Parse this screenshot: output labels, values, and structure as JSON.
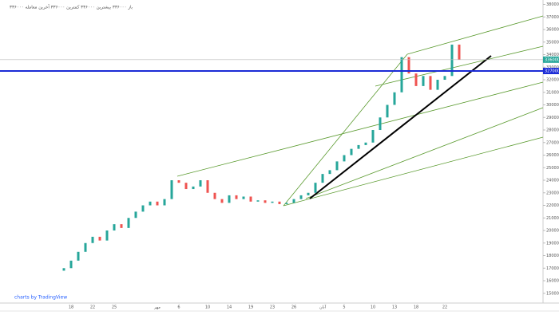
{
  "chart_data": {
    "type": "candlestick",
    "legend_text": "باز ۳۳۶۰۰۰ بیشترین ۳۳۶۰۰۰ کمترین ۳۳۶۰۰۰ آخرین معامله ۳۳۶۰۰۰",
    "watermark": "charts by TradingView",
    "categories": [
      null,
      "18",
      null,
      null,
      "22",
      null,
      null,
      "25",
      null,
      null,
      null,
      null,
      null,
      "مهر",
      null,
      null,
      "6",
      null,
      null,
      null,
      "10",
      null,
      null,
      "14",
      null,
      null,
      "19",
      null,
      null,
      "23",
      null,
      null,
      "26",
      null,
      null,
      null,
      "آبان",
      null,
      null,
      "5",
      null,
      null,
      null,
      "10",
      null,
      null,
      "13",
      null,
      null,
      "18",
      null,
      null,
      null,
      "22",
      null,
      null
    ],
    "open": [
      1680000,
      1700000,
      1760000,
      1830000,
      1900000,
      1950000,
      1920000,
      2000000,
      2050000,
      2020000,
      2100000,
      2150000,
      2200000,
      2230000,
      2200000,
      2250000,
      2400000,
      2380000,
      2330000,
      2350000,
      2400000,
      2300000,
      2250000,
      2220000,
      2280000,
      2250000,
      2270000,
      2230000,
      2240000,
      2220000,
      2230000,
      2210000,
      2220000,
      2250000,
      2280000,
      2300000,
      2380000,
      2450000,
      2480000,
      2550000,
      2600000,
      2650000,
      2680000,
      2700000,
      2800000,
      2900000,
      3000000,
      3100000,
      3380000,
      3250000,
      3150000,
      3230000,
      3120000,
      3200000,
      3230000,
      3480000
    ],
    "close": [
      1700000,
      1760000,
      1830000,
      1900000,
      1950000,
      1920000,
      2000000,
      2050000,
      2020000,
      2100000,
      2150000,
      2200000,
      2230000,
      2200000,
      2250000,
      2400000,
      2380000,
      2330000,
      2350000,
      2400000,
      2300000,
      2250000,
      2220000,
      2280000,
      2250000,
      2270000,
      2230000,
      2240000,
      2220000,
      2230000,
      2210000,
      2220000,
      2250000,
      2280000,
      2300000,
      2380000,
      2450000,
      2480000,
      2550000,
      2600000,
      2650000,
      2680000,
      2700000,
      2800000,
      2900000,
      3000000,
      3100000,
      3380000,
      3250000,
      3150000,
      3230000,
      3120000,
      3200000,
      3230000,
      3480000,
      3360000
    ],
    "up_color": "#26a69a",
    "down_color": "#ef5350",
    "level": 3270000,
    "level_color": "#1b2bd6",
    "ylim": [
      1435000,
      3835000
    ],
    "yticks": [
      1500000,
      1600000,
      1700000,
      1800000,
      1900000,
      2000000,
      2100000,
      2200000,
      2300000,
      2400000,
      2500000,
      2600000,
      2700000,
      2800000,
      2900000,
      3000000,
      3100000,
      3200000,
      3300000,
      3400000,
      3500000,
      3600000,
      3700000,
      3800000
    ]
  }
}
